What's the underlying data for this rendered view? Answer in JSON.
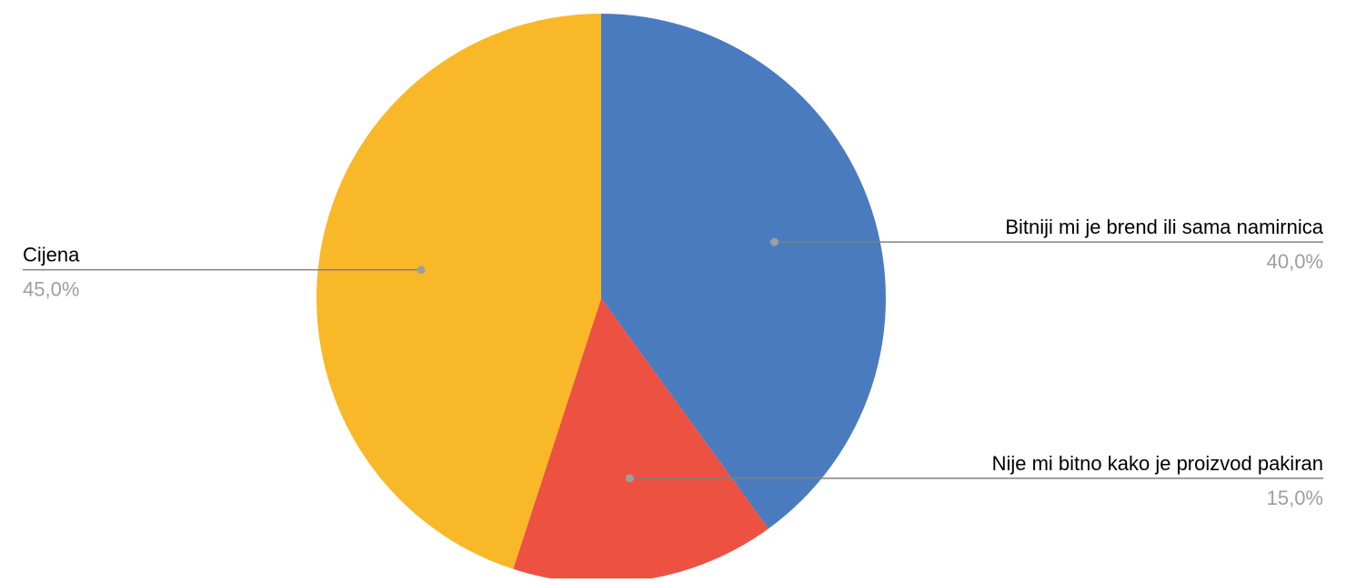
{
  "chart_data": {
    "type": "pie",
    "title": "",
    "start_angle_deg": 0,
    "direction": "clockwise",
    "slices": [
      {
        "label": "Bitniji mi je brend ili sama namirnica",
        "value": 40.0,
        "percent_label": "40,0%",
        "color": "#4a7bbf",
        "label_side": "right"
      },
      {
        "label": "Nije mi bitno kako je proizvod pakiran",
        "value": 15.0,
        "percent_label": "15,0%",
        "color": "#ed5142",
        "label_side": "right"
      },
      {
        "label": "Cijena",
        "value": 45.0,
        "percent_label": "45,0%",
        "color": "#f9b827",
        "label_side": "left"
      }
    ],
    "legend": "none"
  }
}
